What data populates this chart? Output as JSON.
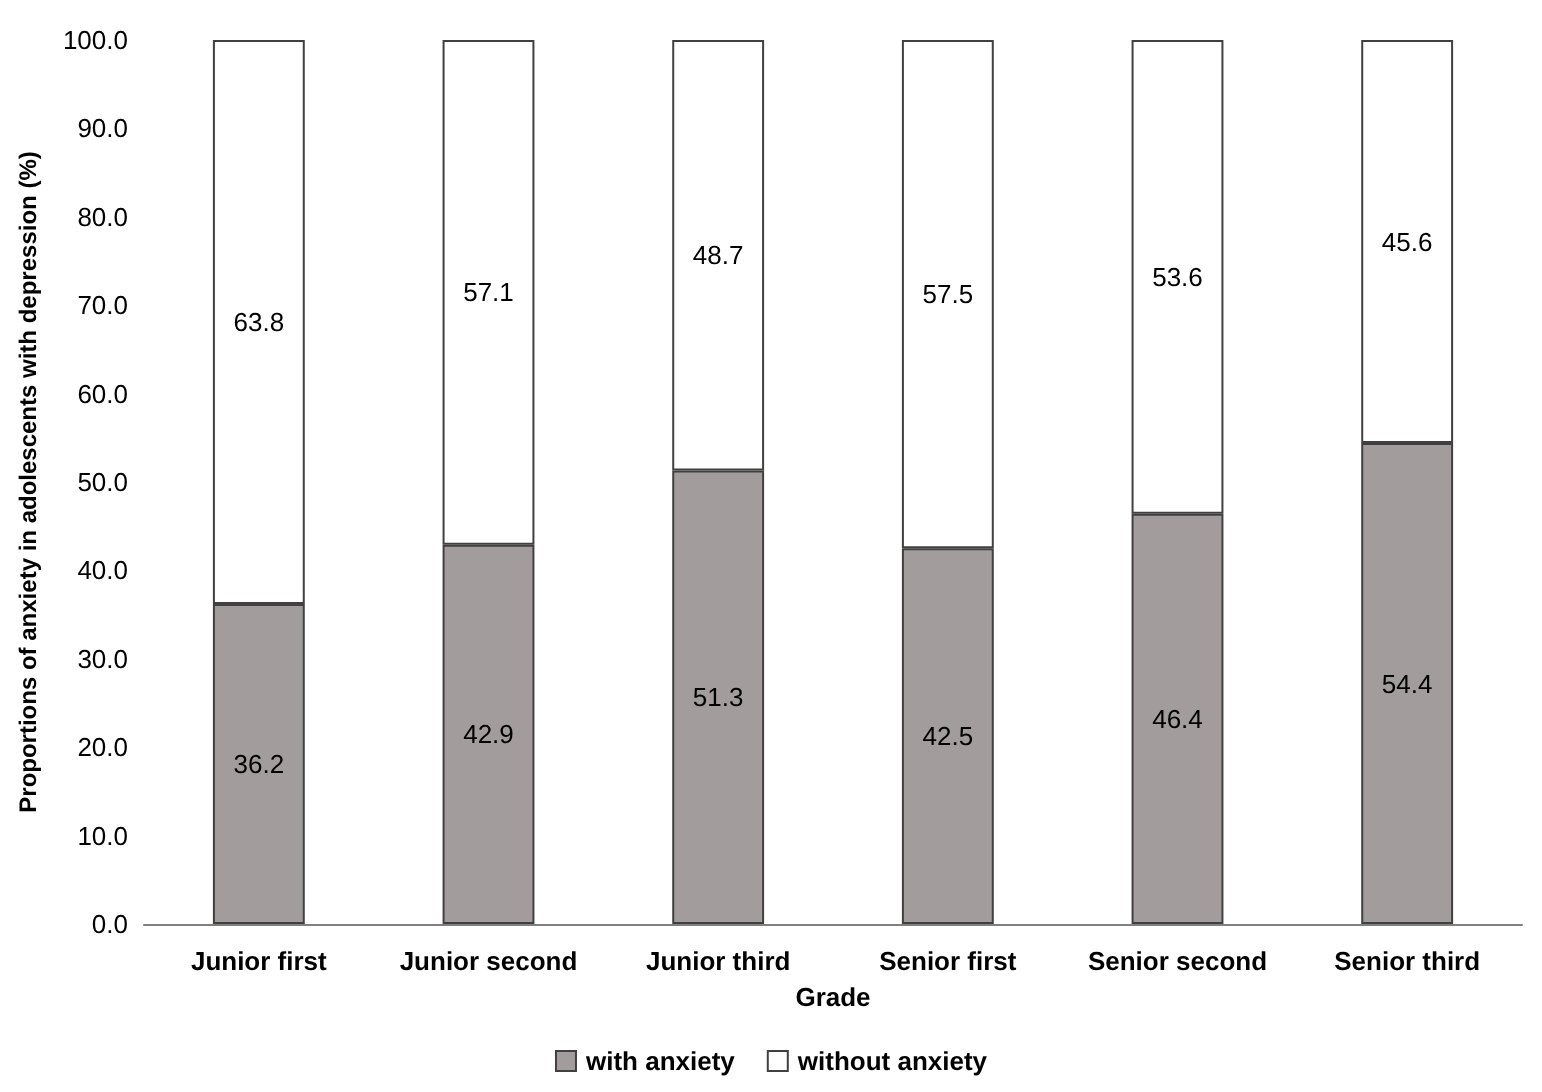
{
  "chart_data": {
    "type": "bar",
    "stacked": true,
    "xlabel": "Grade",
    "ylabel": "Proportions of anxiety in adolescents with depression (%)",
    "categories": [
      "Junior first",
      "Junior second",
      "Junior third",
      "Senior first",
      "Senior second",
      "Senior third"
    ],
    "series": [
      {
        "name": "with anxiety",
        "color": "#a29d9c",
        "values": [
          36.2,
          42.9,
          51.3,
          42.5,
          46.4,
          54.4
        ]
      },
      {
        "name": "without anxiety",
        "color": "#ffffff",
        "values": [
          63.8,
          57.1,
          48.7,
          57.5,
          53.6,
          45.6
        ]
      }
    ],
    "ylim": [
      0,
      100
    ],
    "yticks": [
      {
        "value": 0,
        "label": "0.0"
      },
      {
        "value": 10,
        "label": "10.0"
      },
      {
        "value": 20,
        "label": "20.0"
      },
      {
        "value": 30,
        "label": "30.0"
      },
      {
        "value": 40,
        "label": "40.0"
      },
      {
        "value": 50,
        "label": "50.0"
      },
      {
        "value": 60,
        "label": "60.0"
      },
      {
        "value": 70,
        "label": "70.0"
      },
      {
        "value": 80,
        "label": "80.0"
      },
      {
        "value": 90,
        "label": "90.0"
      },
      {
        "value": 100,
        "label": "100.0"
      }
    ],
    "data_labels": true,
    "legend": "bottom",
    "grid": false
  }
}
